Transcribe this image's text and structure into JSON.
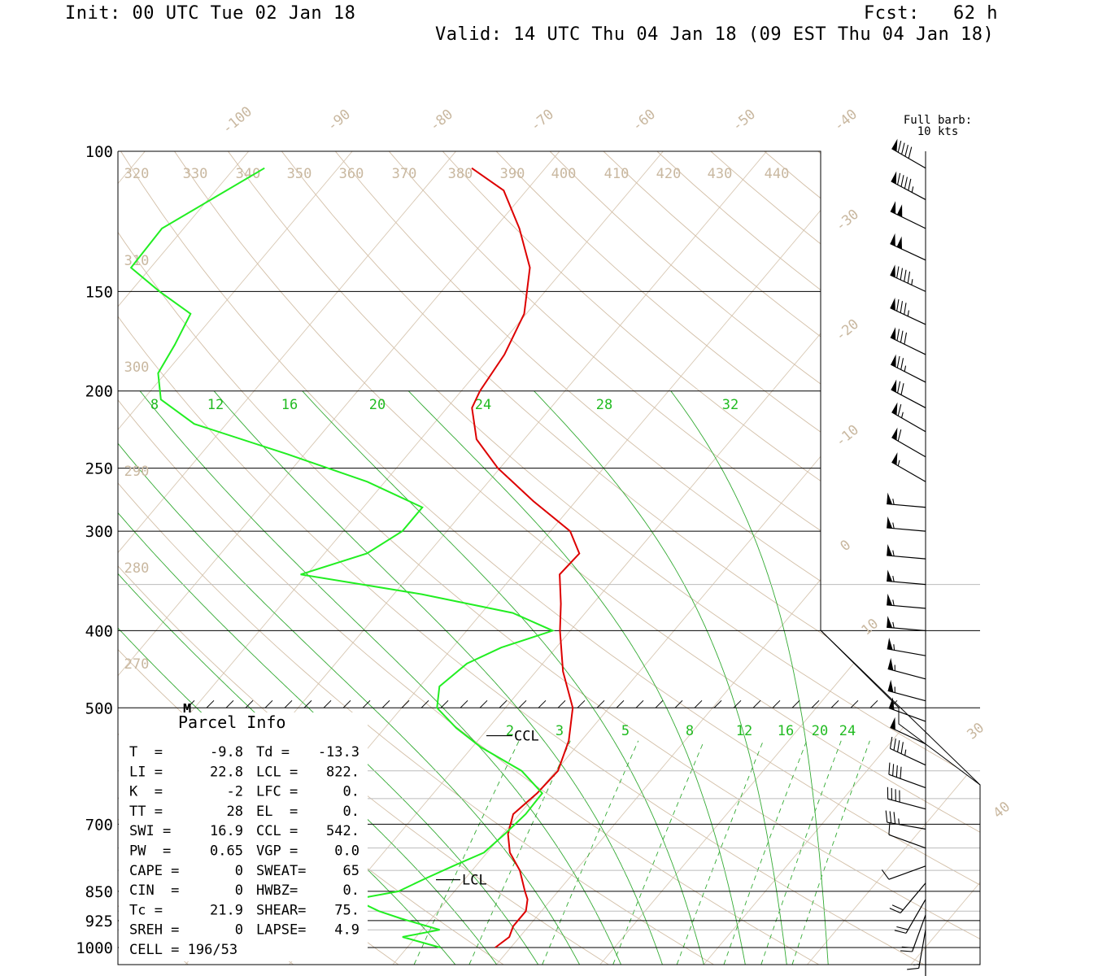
{
  "header": {
    "init": "Init: 00 UTC Tue 02 Jan 18",
    "fcst": "Fcst:   62 h",
    "valid": "Valid: 14 UTC Thu 04 Jan 18 (09 EST Thu 04 Jan 18)"
  },
  "chart_data": {
    "type": "line",
    "title": "",
    "ylabel": "",
    "xlabel": "",
    "y_scale": "log-pressure",
    "ylim": [
      1000,
      100
    ],
    "pressure_levels": [
      100,
      150,
      200,
      250,
      300,
      400,
      500,
      700,
      850,
      925,
      1000
    ],
    "isotherm_labels": [
      "-100",
      "-90",
      "-80",
      "-70",
      "-60",
      "-50",
      "-40",
      "-30",
      "-20",
      "-10",
      "0",
      "10",
      "30",
      "40"
    ],
    "theta_labels": [
      "320",
      "330",
      "340",
      "350",
      "360",
      "370",
      "380",
      "390",
      "400",
      "410",
      "420",
      "430",
      "440",
      "310",
      "300",
      "290",
      "280",
      "270"
    ],
    "mixing_ratio_upper": [
      "8",
      "12",
      "16",
      "20",
      "24",
      "28",
      "32"
    ],
    "mixing_ratio_lower": [
      "2",
      "3",
      "5",
      "8",
      "12",
      "16",
      "20",
      "24"
    ],
    "series": [
      {
        "key": "temperature",
        "color": "#dd0000",
        "p": [
          1000,
          970,
          940,
          900,
          870,
          850,
          800,
          760,
          720,
          680,
          640,
          600,
          550,
          500,
          450,
          400,
          370,
          340,
          320,
          300,
          275,
          250,
          230,
          210,
          200,
          180,
          160,
          140,
          125,
          112,
          105
        ],
        "t": [
          -1.5,
          -1.0,
          -1.5,
          -1.5,
          -2.3,
          -3.2,
          -5.4,
          -7.8,
          -9.5,
          -10.6,
          -10.0,
          -9.8,
          -11.2,
          -13.5,
          -17.4,
          -21.0,
          -23.1,
          -25.6,
          -25.4,
          -28.1,
          -34.1,
          -40.2,
          -44.6,
          -47.6,
          -48.2,
          -48.8,
          -50.2,
          -53.4,
          -57.6,
          -62.2,
          -67.1
        ]
      },
      {
        "key": "dewpoint",
        "color": "#22ee22",
        "p": [
          1000,
          970,
          950,
          920,
          900,
          870,
          850,
          820,
          790,
          760,
          720,
          680,
          640,
          600,
          560,
          530,
          500,
          470,
          440,
          420,
          400,
          380,
          360,
          340,
          320,
          300,
          280,
          260,
          240,
          220,
          205,
          190,
          175,
          160,
          150,
          140,
          125,
          105
        ],
        "t": [
          -6.8,
          -11.3,
          -8.3,
          -12.9,
          -15.7,
          -19.0,
          -15.4,
          -13.9,
          -12.2,
          -10.3,
          -9.8,
          -9.4,
          -9.5,
          -13.3,
          -19.2,
          -23.1,
          -26.6,
          -28.1,
          -27.3,
          -25.3,
          -21.7,
          -27.0,
          -37.3,
          -50.6,
          -45.9,
          -44.3,
          -44.3,
          -51.7,
          -61.7,
          -73.1,
          -78.3,
          -80.7,
          -81.4,
          -82.4,
          -87.2,
          -91.9,
          -92.1,
          -87.1
        ]
      }
    ],
    "annotations": {
      "lcl_label": "LCL",
      "ccl_label": "CCL",
      "m_label": "M"
    },
    "wind_barbs": {
      "header_line1": "Full barb:",
      "header_line2": "10 kts",
      "unit": "kts",
      "p": [
        105,
        115,
        125,
        137,
        150,
        165,
        180,
        195,
        210,
        225,
        242,
        260,
        280,
        300,
        325,
        350,
        375,
        400,
        430,
        460,
        490,
        520,
        555,
        590,
        630,
        670,
        710,
        750,
        790,
        830,
        870,
        910,
        950,
        1000
      ],
      "direction": [
        300,
        298,
        296,
        295,
        295,
        295,
        296,
        297,
        298,
        300,
        300,
        300,
        275,
        275,
        275,
        275,
        275,
        275,
        280,
        285,
        285,
        290,
        295,
        295,
        290,
        285,
        280,
        290,
        250,
        220,
        210,
        200,
        190,
        180
      ],
      "speed": [
        90,
        95,
        100,
        100,
        95,
        85,
        80,
        75,
        70,
        65,
        60,
        55,
        55,
        55,
        55,
        55,
        55,
        55,
        55,
        55,
        55,
        50,
        50,
        45,
        40,
        40,
        35,
        10,
        10,
        20,
        20,
        20,
        15,
        10
      ]
    }
  },
  "parcel_info": {
    "title": "Parcel Info",
    "rows": [
      [
        "T  =",
        "-9.8",
        "Td =",
        "-13.3"
      ],
      [
        "LI =",
        "22.8",
        "LCL =",
        "822."
      ],
      [
        "K  =",
        "-2",
        "LFC =",
        "0."
      ],
      [
        "TT =",
        "28",
        "EL  =",
        "0."
      ],
      [
        "SWI =",
        "16.9",
        "CCL =",
        "542."
      ],
      [
        "PW  =",
        "0.65",
        "VGP =",
        "0.0"
      ],
      [
        "CAPE =",
        "0",
        "SWEAT=",
        "65"
      ],
      [
        "CIN  =",
        "0",
        "HWBZ=",
        "0."
      ],
      [
        "Tc =",
        "21.9",
        "SHEAR=",
        "75."
      ],
      [
        "SREH =",
        "0",
        "LAPSE=",
        "4.9"
      ],
      [
        "CELL = 196/53",
        "",
        "",
        ""
      ]
    ]
  }
}
